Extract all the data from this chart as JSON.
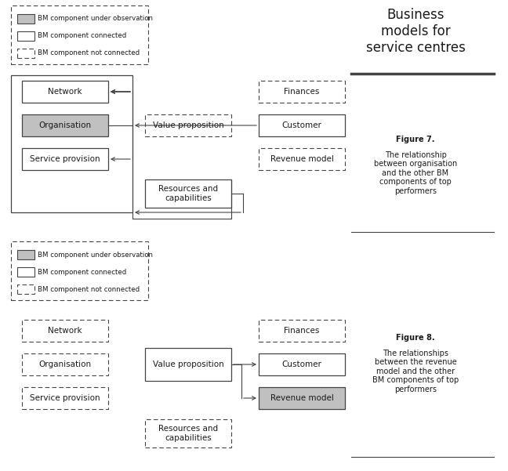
{
  "bg_color": "#ffffff",
  "text_color": "#1a1a1a",
  "box_edge_color": "#444444",
  "gray_fill": "#c0c0c0",
  "white_fill": "#ffffff",
  "title": "Business\nmodels for\nservice centres",
  "title_fontsize": 12,
  "fig7_caption_bold": "Figure 7.",
  "fig7_caption_rest": "\nThe relationship\nbetween organisation\nand the other BM\ncomponents of top\nperformers",
  "fig8_caption_bold": "Figure 8.",
  "fig8_caption_rest": "\nThe relationships\nbetween the revenue\nmodel and the other\nBM components of top\nperformers",
  "legend_items": [
    {
      "label": "BM component under observation",
      "style": "gray"
    },
    {
      "label": "BM component connected",
      "style": "solid"
    },
    {
      "label": "BM component not connected",
      "style": "dashed"
    }
  ]
}
